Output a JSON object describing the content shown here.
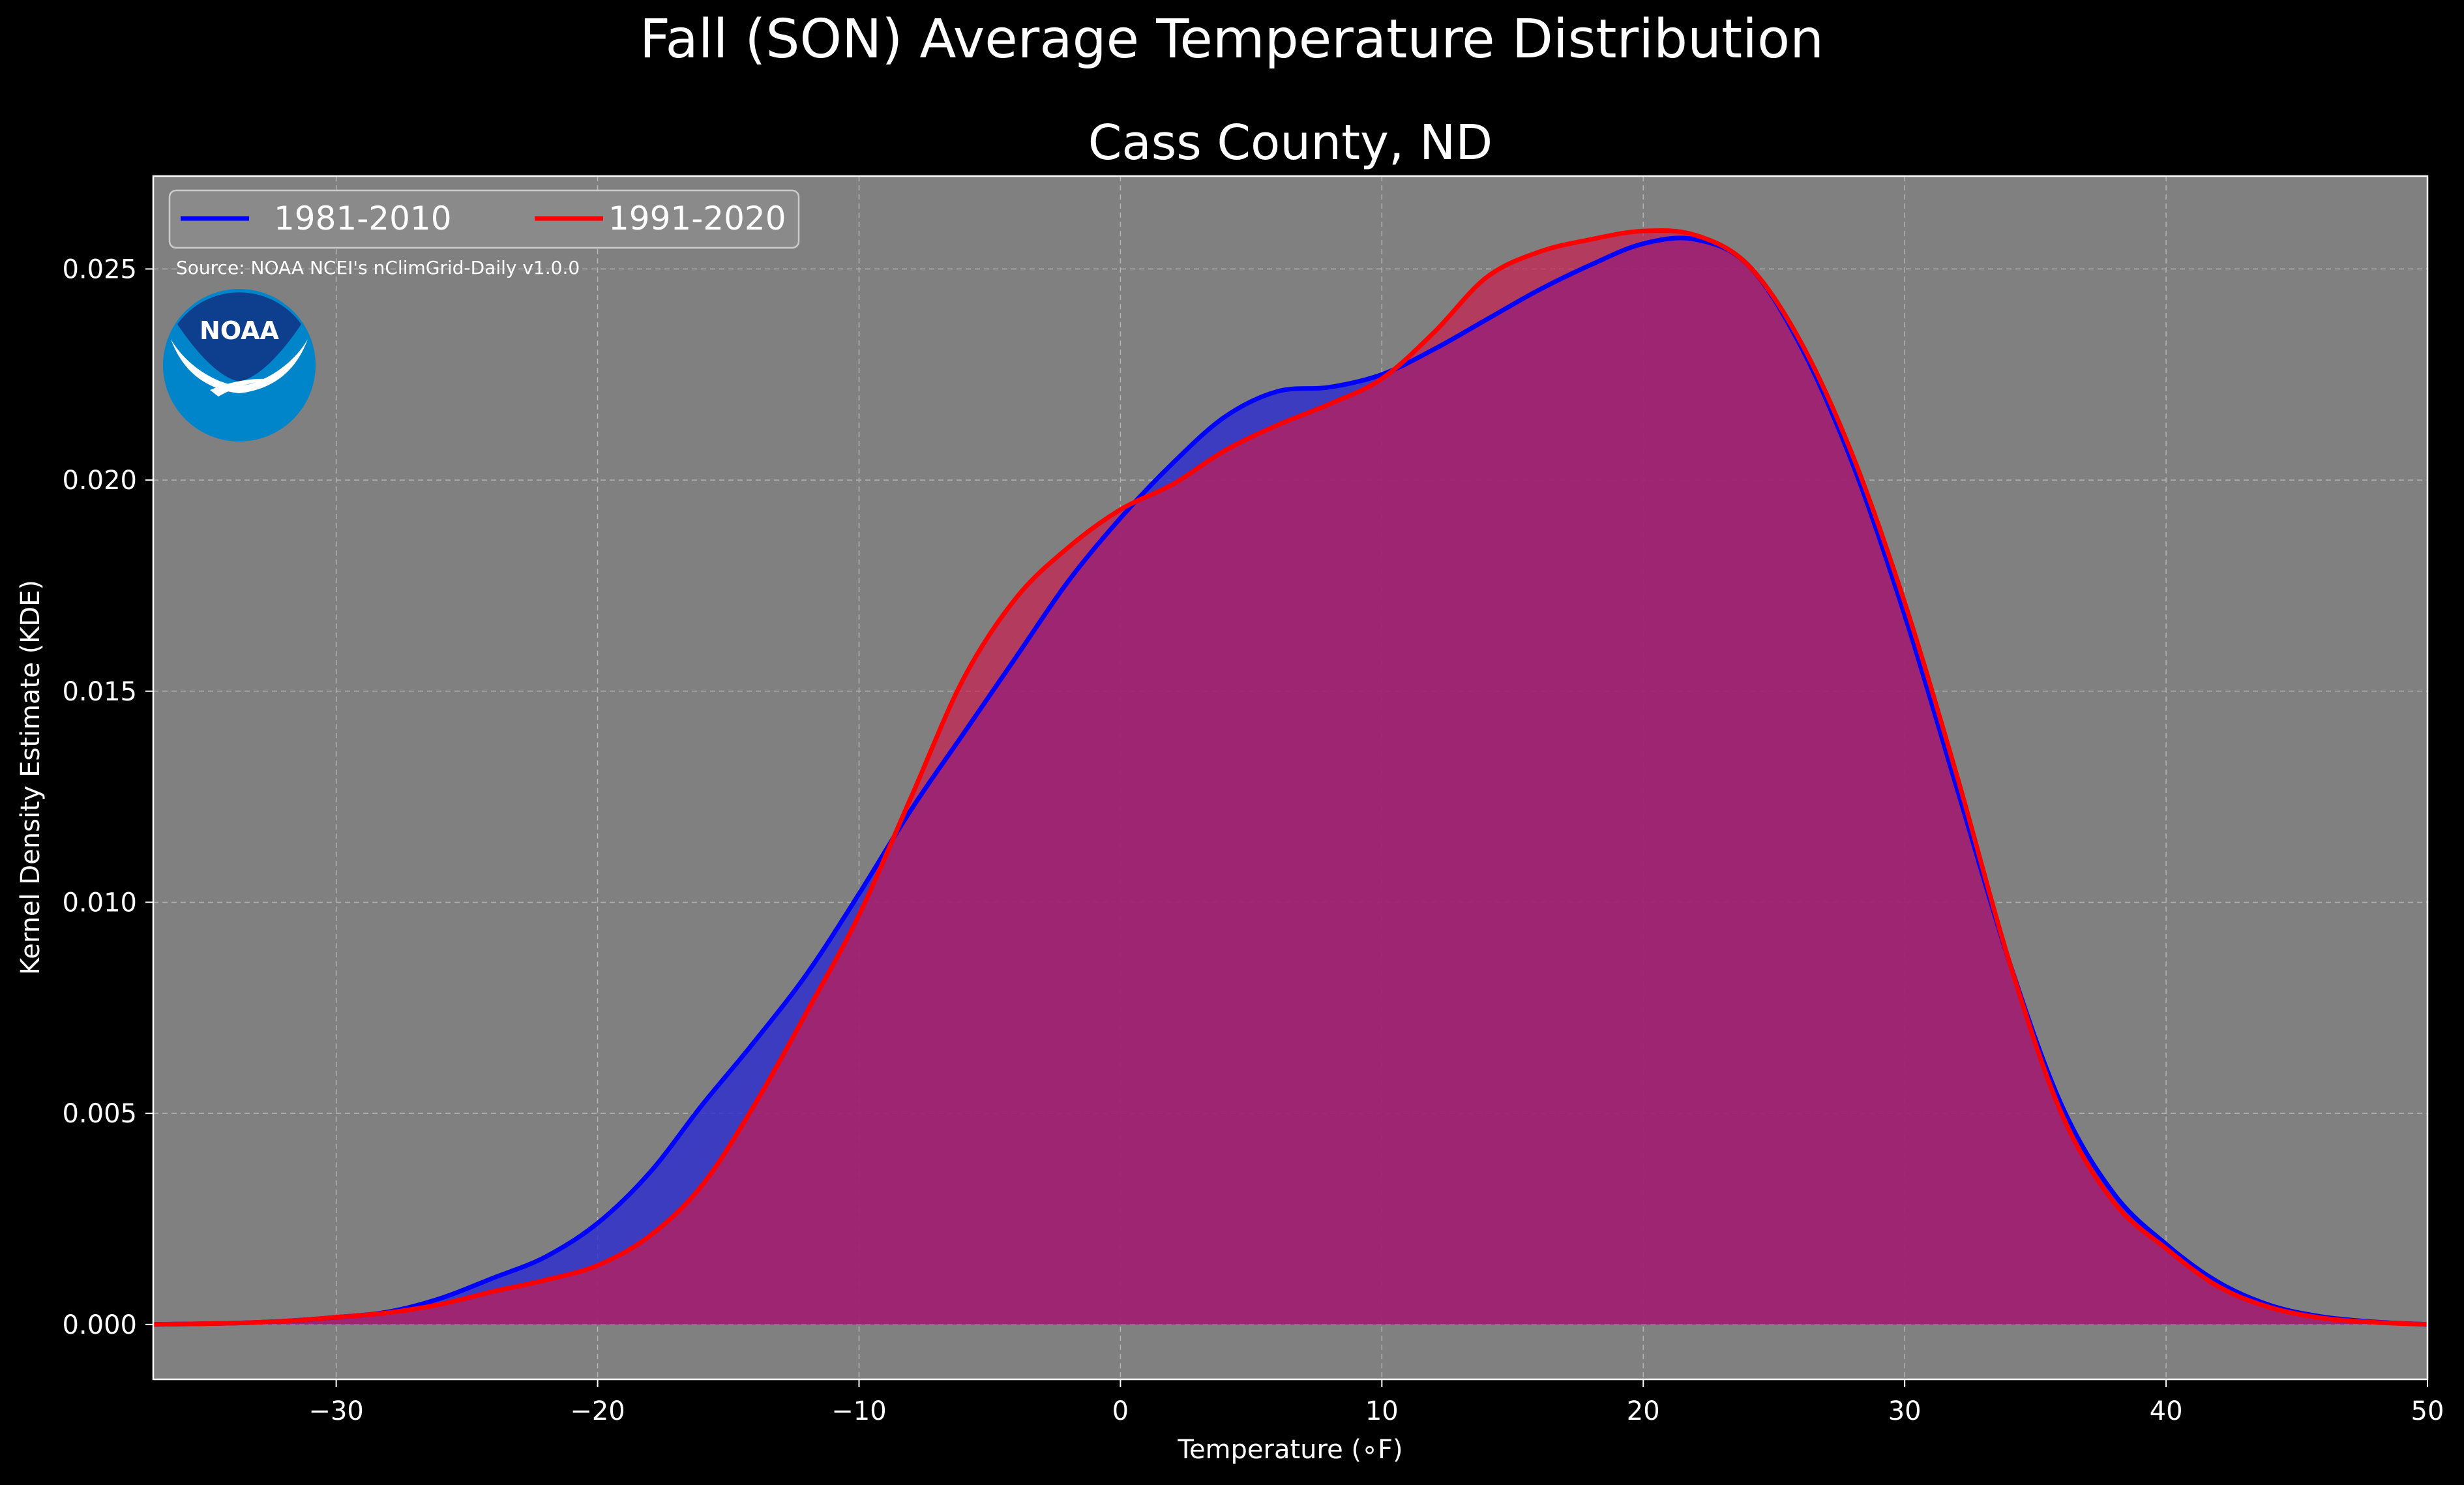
{
  "chart_data": {
    "type": "area",
    "title": "Fall (SON) Average Temperature Distribution",
    "subtitle": "Cass County, ND",
    "xlabel": "Temperature (∘F)",
    "ylabel": "Kernel Density Estimate (KDE)",
    "source_text": "Source: NOAA NCEI's nClimGrid-Daily v1.0.0",
    "logo_text": "NOAA",
    "xlim": [
      -37,
      50
    ],
    "ylim": [
      -0.0013,
      0.0272
    ],
    "xticks": [
      -30,
      -20,
      -10,
      0,
      10,
      20,
      30,
      40,
      50
    ],
    "xtick_labels": [
      "−30",
      "−20",
      "−10",
      "0",
      "10",
      "20",
      "30",
      "40",
      "50"
    ],
    "yticks": [
      0.0,
      0.005,
      0.01,
      0.015,
      0.02,
      0.025
    ],
    "ytick_labels": [
      "0.000",
      "0.005",
      "0.010",
      "0.015",
      "0.020",
      "0.025"
    ],
    "grid": true,
    "legend_position": "top-left",
    "background_color": "#808080",
    "figure_color": "#000000",
    "series": [
      {
        "name": "1981-2010",
        "color": "#0000ff",
        "fill_color": "#2a2ad0",
        "points": [
          [
            -37,
            0.0
          ],
          [
            -34,
            3e-05
          ],
          [
            -32,
            8e-05
          ],
          [
            -30,
            0.00017
          ],
          [
            -28,
            0.0003
          ],
          [
            -26,
            0.00062
          ],
          [
            -24,
            0.0011
          ],
          [
            -22,
            0.0016
          ],
          [
            -20,
            0.0024
          ],
          [
            -18,
            0.0036
          ],
          [
            -16,
            0.0052
          ],
          [
            -14,
            0.0067
          ],
          [
            -12,
            0.0083
          ],
          [
            -10,
            0.0102
          ],
          [
            -8,
            0.0122
          ],
          [
            -6,
            0.014
          ],
          [
            -4,
            0.0158
          ],
          [
            -2,
            0.0176
          ],
          [
            0,
            0.0191
          ],
          [
            2,
            0.0204
          ],
          [
            4,
            0.0215
          ],
          [
            6,
            0.0221
          ],
          [
            8,
            0.0222
          ],
          [
            10,
            0.0225
          ],
          [
            12,
            0.0231
          ],
          [
            14,
            0.0238
          ],
          [
            16,
            0.0245
          ],
          [
            18,
            0.0251
          ],
          [
            20,
            0.0256
          ],
          [
            22,
            0.0257
          ],
          [
            24,
            0.0251
          ],
          [
            26,
            0.0232
          ],
          [
            28,
            0.0204
          ],
          [
            30,
            0.0168
          ],
          [
            32,
            0.0127
          ],
          [
            34,
            0.0086
          ],
          [
            36,
            0.0052
          ],
          [
            38,
            0.0031
          ],
          [
            40,
            0.0019
          ],
          [
            42,
            0.001
          ],
          [
            44,
            0.00045
          ],
          [
            46,
            0.00018
          ],
          [
            48,
            6e-05
          ],
          [
            50,
            0.0
          ]
        ]
      },
      {
        "name": "1991-2020",
        "color": "#ff0000",
        "fill_color": "#cc1a4d",
        "points": [
          [
            -37,
            0.0
          ],
          [
            -34,
            3e-05
          ],
          [
            -32,
            8e-05
          ],
          [
            -30,
            0.00017
          ],
          [
            -28,
            0.00028
          ],
          [
            -26,
            0.00048
          ],
          [
            -24,
            0.00078
          ],
          [
            -22,
            0.00105
          ],
          [
            -20,
            0.0014
          ],
          [
            -18,
            0.0021
          ],
          [
            -16,
            0.0033
          ],
          [
            -14,
            0.0052
          ],
          [
            -12,
            0.0074
          ],
          [
            -10,
            0.0097
          ],
          [
            -8,
            0.0125
          ],
          [
            -6,
            0.0153
          ],
          [
            -4,
            0.0172
          ],
          [
            -2,
            0.0184
          ],
          [
            0,
            0.0193
          ],
          [
            2,
            0.0199
          ],
          [
            4,
            0.0207
          ],
          [
            6,
            0.0213
          ],
          [
            8,
            0.0218
          ],
          [
            10,
            0.0224
          ],
          [
            12,
            0.0235
          ],
          [
            14,
            0.0248
          ],
          [
            16,
            0.0254
          ],
          [
            18,
            0.0257
          ],
          [
            20,
            0.0259
          ],
          [
            22,
            0.0258
          ],
          [
            24,
            0.0251
          ],
          [
            26,
            0.0233
          ],
          [
            28,
            0.0206
          ],
          [
            30,
            0.0171
          ],
          [
            32,
            0.013
          ],
          [
            34,
            0.0086
          ],
          [
            36,
            0.005
          ],
          [
            38,
            0.0029
          ],
          [
            40,
            0.0018
          ],
          [
            42,
            0.0009
          ],
          [
            44,
            0.0004
          ],
          [
            46,
            0.00015
          ],
          [
            48,
            5e-05
          ],
          [
            50,
            0.0
          ]
        ]
      }
    ]
  }
}
